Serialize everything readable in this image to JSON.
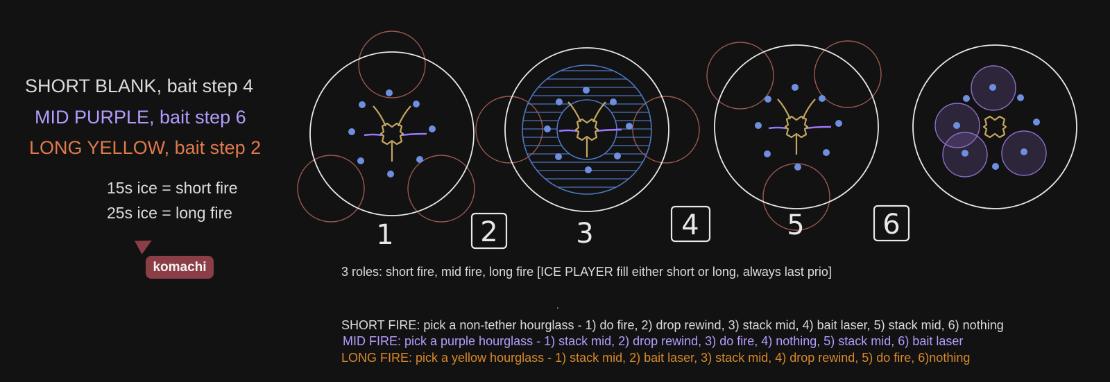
{
  "colors": {
    "background": "#121212",
    "white_text": "#dcdcdc",
    "purple": "#b59cff",
    "orange": "#e07a4b",
    "yellow_orange": "#d9892a",
    "arena_ring": "#e8e8e8",
    "aoe_red": "#9c5a50",
    "player_dot": "#6e8fe0",
    "tether_purple": "#9a78ff",
    "hourglass_yellow": "#c4a862",
    "water_blue": "#4f78c2",
    "purple_aoe": "#8c6ec8",
    "badge": "#8c3e46"
  },
  "legend": {
    "short_blank": "SHORT BLANK, bait step 4",
    "mid_purple": "MID PURPLE, bait step 6",
    "long_yellow": "LONG YELLOW, bait step 2",
    "ice_short": "15s ice = short fire",
    "ice_long": "25s ice = long fire"
  },
  "cursor_label": "komachi",
  "steps": [
    "1",
    "2",
    "3",
    "4",
    "5",
    "6"
  ],
  "roles_line": "3 roles: short fire, mid fire, long fire [ICE PLAYER fill either short or long, always last prio]",
  "dot": ".",
  "short_fire": "SHORT FIRE: pick a non-tether hourglass - 1) do fire, 2) drop rewind, 3) stack mid, 4) bait laser, 5) stack mid, 6) nothing",
  "mid_fire": "MID FIRE: pick a purple hourglass - 1) stack mid, 2) drop rewind, 3) do fire, 4) nothing, 5) stack mid, 6) bait laser",
  "long_fire": "LONG FIRE: pick a yellow hourglass - 1) stack mid, 2) bait laser, 3) stack mid, 4) drop rewind, 5) do fire, 6)nothing"
}
